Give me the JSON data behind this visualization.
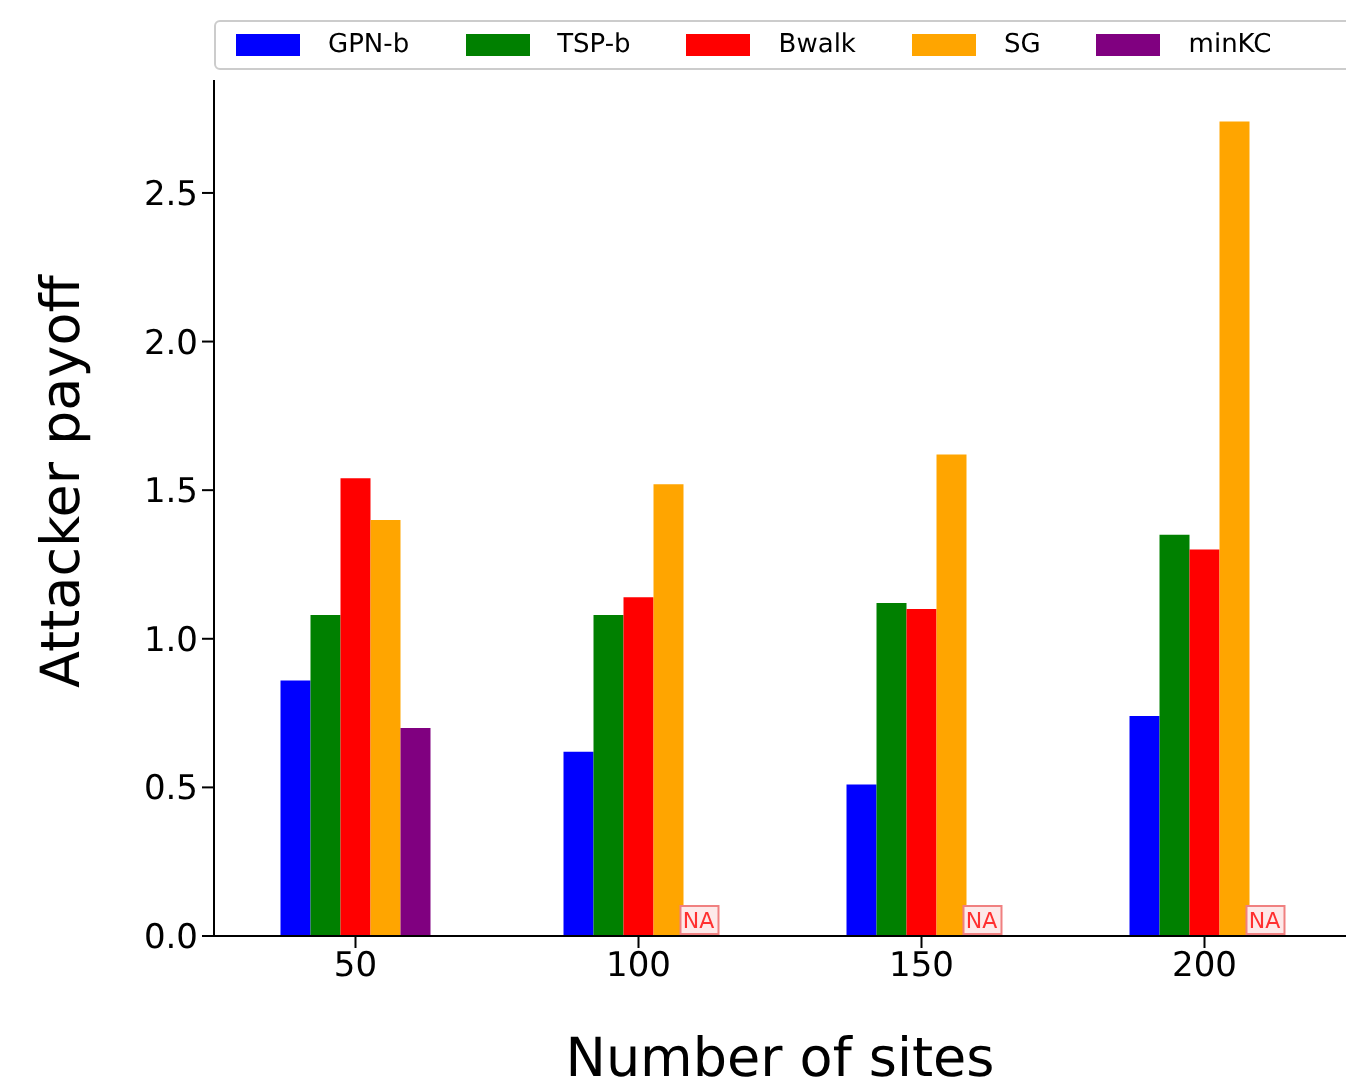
{
  "chart_data": {
    "type": "bar",
    "xlabel": "Number of sites",
    "ylabel": "Attacker payoff",
    "categories": [
      "50",
      "100",
      "150",
      "200"
    ],
    "series": [
      {
        "name": "GPN-b",
        "color": "#0000ff",
        "values": [
          0.86,
          0.62,
          0.51,
          0.74
        ]
      },
      {
        "name": "TSP-b",
        "color": "#008000",
        "values": [
          1.08,
          1.08,
          1.12,
          1.35
        ]
      },
      {
        "name": "Bwalk",
        "color": "#ff0000",
        "values": [
          1.54,
          1.14,
          1.1,
          1.3
        ]
      },
      {
        "name": "SG",
        "color": "#ffa500",
        "values": [
          1.4,
          1.52,
          1.62,
          2.74
        ]
      },
      {
        "name": "minKC",
        "color": "#800080",
        "values": [
          0.7,
          null,
          null,
          null
        ]
      }
    ],
    "ylim": [
      0,
      2.88
    ],
    "yticks": [
      {
        "value": 0,
        "label": "0.0"
      },
      {
        "value": 0.5,
        "label": "0.5"
      },
      {
        "value": 1,
        "label": "1.0"
      },
      {
        "value": 1.5,
        "label": "1.5"
      },
      {
        "value": 2,
        "label": "2.0"
      },
      {
        "value": 2.5,
        "label": "2.5"
      }
    ],
    "legend": "top",
    "grid": false,
    "annotations": [
      {
        "text": "NA",
        "x": "100",
        "y": 0
      },
      {
        "text": "NA",
        "x": "150",
        "y": 0
      },
      {
        "text": "NA",
        "x": "200",
        "y": 0
      }
    ]
  }
}
